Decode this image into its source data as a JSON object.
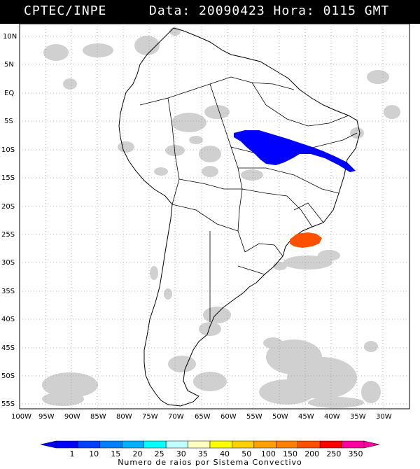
{
  "header": {
    "source": "CPTEC/INPE",
    "date_time": "Data: 20090423 Hora: 0115 GMT"
  },
  "axes": {
    "lat_labels": [
      "10N",
      "5N",
      "EQ",
      "5S",
      "10S",
      "15S",
      "20S",
      "25S",
      "30S",
      "35S",
      "40S",
      "45S",
      "50S",
      "55S"
    ],
    "lon_labels": [
      "100W",
      "95W",
      "90W",
      "85W",
      "80W",
      "75W",
      "70W",
      "65W",
      "60W",
      "55W",
      "50W",
      "45W",
      "40W",
      "35W",
      "30W"
    ]
  },
  "legend": {
    "title": "Numero de raios por Sistema Convectivo",
    "values": [
      "1",
      "10",
      "15",
      "20",
      "25",
      "30",
      "35",
      "40",
      "50",
      "100",
      "150",
      "200",
      "250",
      "350"
    ],
    "colors": [
      "#0000ff",
      "#0040ff",
      "#0080ff",
      "#00b0ff",
      "#00ffff",
      "#c0ffff",
      "#ffffc0",
      "#ffff00",
      "#ffd000",
      "#ffa000",
      "#ff8000",
      "#ff5000",
      "#ff0000",
      "#ff00a0"
    ]
  },
  "systems": [
    {
      "name": "blue-system",
      "color": "#0000ff",
      "count_class": "1"
    },
    {
      "name": "orange-system",
      "color": "#ff5000",
      "count_class": "200"
    }
  ]
}
